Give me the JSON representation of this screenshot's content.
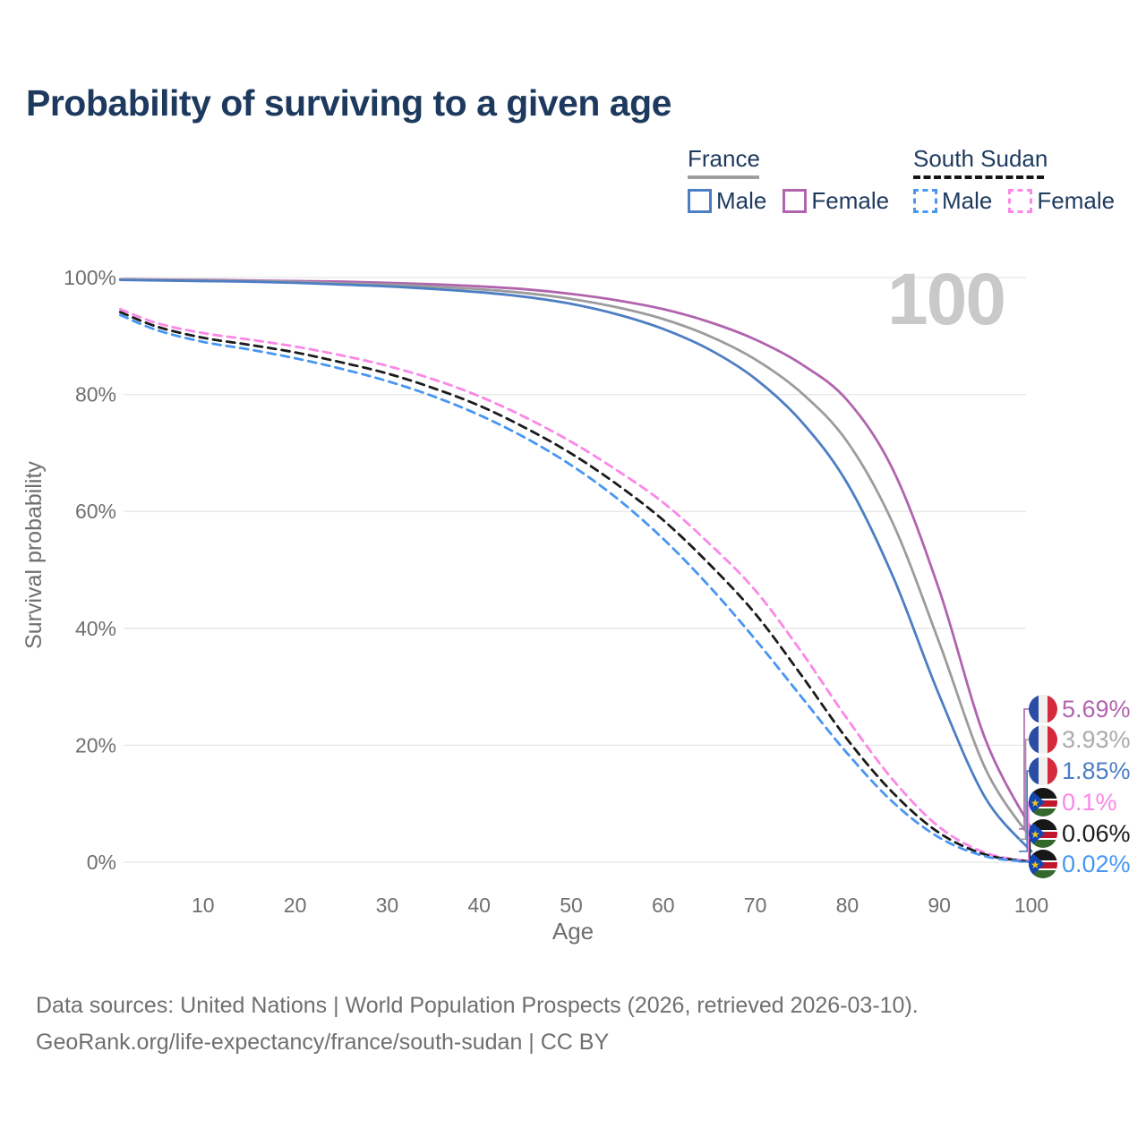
{
  "title": "Probability of surviving to a given age",
  "watermark": "100",
  "legend": {
    "groups": [
      {
        "name": "France",
        "line_style": "solid",
        "key_color": "#9e9e9e",
        "items": [
          {
            "label": "Male",
            "color": "#4d7ec3"
          },
          {
            "label": "Female",
            "color": "#b164ae"
          }
        ]
      },
      {
        "name": "South Sudan",
        "line_style": "dashed",
        "key_color": "#161616",
        "items": [
          {
            "label": "Male",
            "color": "#4796f2"
          },
          {
            "label": "Female",
            "color": "#fb87e7"
          }
        ]
      }
    ]
  },
  "chart_data": {
    "type": "line",
    "title": "Probability of surviving to a given age",
    "xlabel": "Age",
    "ylabel": "Survival probability",
    "xlim": [
      1,
      100
    ],
    "ylim": [
      0,
      100
    ],
    "grid": "horizontal",
    "legend_position": "top-right",
    "x_ticks": [
      10,
      20,
      30,
      40,
      50,
      60,
      70,
      80,
      90,
      100
    ],
    "y_tick_values": [
      0,
      20,
      40,
      60,
      80,
      100
    ],
    "y_tick_labels": [
      "0%",
      "20%",
      "40%",
      "60%",
      "80%",
      "100%"
    ],
    "x": [
      1,
      5,
      10,
      15,
      20,
      25,
      30,
      35,
      40,
      45,
      50,
      55,
      60,
      65,
      70,
      75,
      80,
      85,
      90,
      95,
      100
    ],
    "series": [
      {
        "name": "France — Female",
        "country": "France",
        "sex": "Female",
        "flag": "france",
        "line": "solid",
        "color": "#b164ae",
        "label_color": "#b164ae",
        "end_label": "5.69%",
        "values": [
          99.7,
          99.65,
          99.6,
          99.5,
          99.4,
          99.3,
          99.1,
          98.85,
          98.5,
          98.0,
          97.2,
          96.1,
          94.6,
          92.4,
          89.4,
          85.2,
          79.0,
          67.0,
          46.5,
          21.0,
          5.69
        ]
      },
      {
        "name": "France — Total",
        "country": "France",
        "sex": "Both",
        "flag": "france",
        "line": "solid",
        "color": "#9c9c9c",
        "label_color": "#ababab",
        "end_label": "3.93%",
        "values": [
          99.65,
          99.6,
          99.5,
          99.4,
          99.25,
          99.0,
          98.8,
          98.45,
          98.0,
          97.35,
          96.35,
          94.9,
          92.9,
          90.0,
          86.0,
          80.3,
          71.9,
          57.8,
          37.5,
          16.0,
          3.93
        ]
      },
      {
        "name": "France — Male",
        "country": "France",
        "sex": "Male",
        "flag": "france",
        "line": "solid",
        "color": "#4d7ec3",
        "label_color": "#4d7ec3",
        "end_label": "1.85%",
        "values": [
          99.6,
          99.5,
          99.4,
          99.3,
          99.1,
          98.8,
          98.5,
          98.05,
          97.5,
          96.7,
          95.5,
          93.7,
          91.2,
          87.7,
          82.7,
          75.4,
          64.8,
          48.7,
          28.5,
          11.0,
          1.85
        ]
      },
      {
        "name": "South Sudan — Female",
        "country": "South Sudan",
        "sex": "Female",
        "flag": "south-sudan",
        "line": "dashed",
        "color": "#fb87e7",
        "label_color": "#fb87e7",
        "end_label": "0.1%",
        "values": [
          94.6,
          92.2,
          90.5,
          89.4,
          88.2,
          86.7,
          84.9,
          82.6,
          79.7,
          76.1,
          71.9,
          67.0,
          61.5,
          54.5,
          46.5,
          36.0,
          24.5,
          14.0,
          6.0,
          1.6,
          0.1
        ]
      },
      {
        "name": "South Sudan — Total",
        "country": "South Sudan",
        "sex": "Both",
        "flag": "south-sudan",
        "line": "dashed",
        "color": "#1b1b1b",
        "label_color": "#1b1b1b",
        "end_label": "0.06%",
        "values": [
          94.1,
          91.6,
          89.7,
          88.5,
          87.2,
          85.5,
          83.6,
          81.1,
          78.1,
          74.3,
          69.9,
          64.6,
          58.5,
          51.0,
          42.5,
          32.0,
          21.0,
          11.8,
          5.0,
          1.3,
          0.06
        ]
      },
      {
        "name": "South Sudan — Male",
        "country": "South Sudan",
        "sex": "Male",
        "flag": "south-sudan",
        "line": "dashed",
        "color": "#4796f2",
        "label_color": "#4796f2",
        "end_label": "0.02%",
        "values": [
          93.6,
          91.0,
          89.0,
          87.7,
          86.2,
          84.4,
          82.3,
          79.7,
          76.5,
          72.6,
          67.9,
          62.2,
          55.3,
          47.2,
          38.1,
          28.3,
          18.6,
          10.2,
          4.2,
          1.0,
          0.02
        ]
      }
    ]
  },
  "footer": {
    "line1": "Data sources: United Nations | World Population Prospects (2026, retrieved 2026-03-10).",
    "line2": "GeoRank.org/life-expectancy/france/south-sudan | CC BY"
  },
  "colors": {
    "title_text": "#1d3a5e",
    "axis_text": "#6f6f6f",
    "gridline": "#e7e7e7",
    "watermark": "#c9c9c9"
  }
}
